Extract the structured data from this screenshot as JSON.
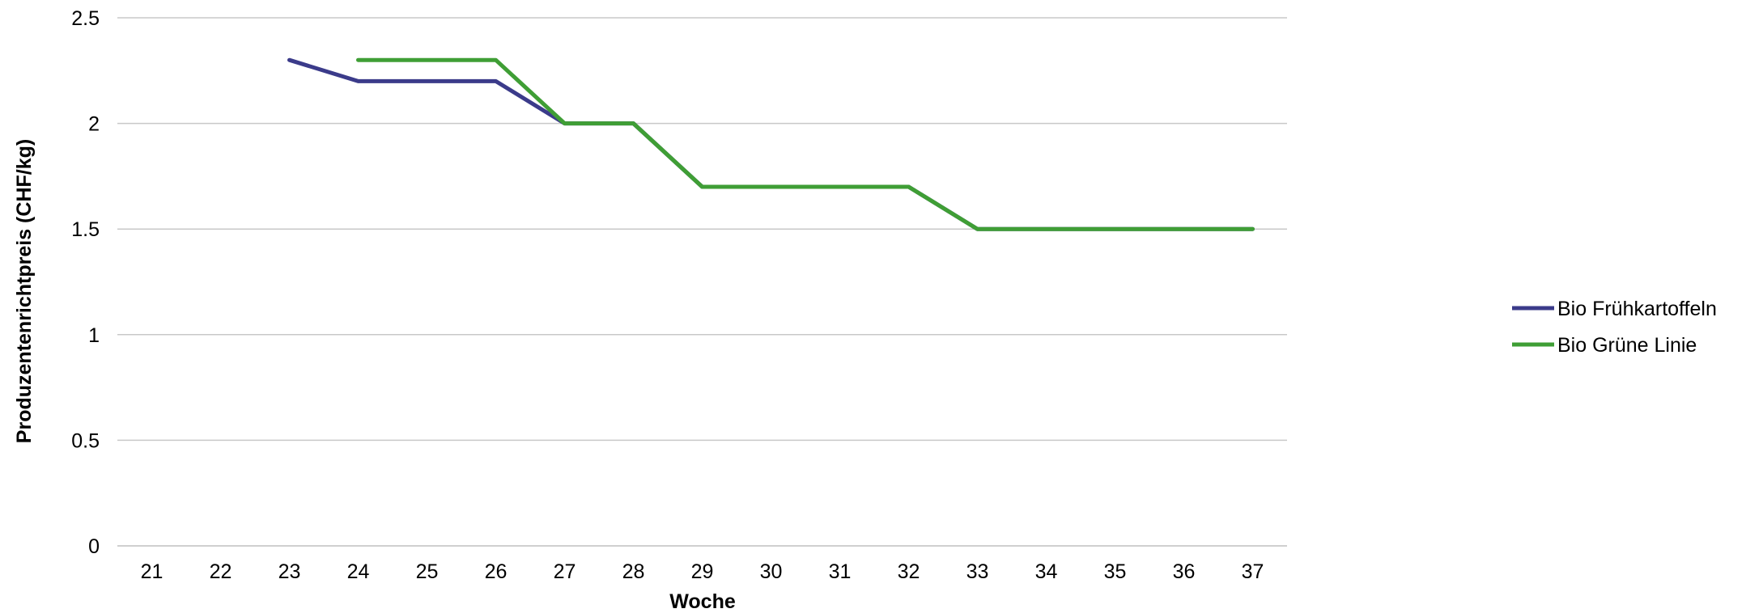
{
  "chart_data": {
    "type": "line",
    "title": "",
    "xlabel": "Woche",
    "ylabel": "Produzentenrichtpreis (CHF/kg)",
    "x": [
      "21",
      "22",
      "23",
      "24",
      "25",
      "26",
      "27",
      "28",
      "29",
      "30",
      "31",
      "32",
      "33",
      "34",
      "35",
      "36",
      "37"
    ],
    "ylim": [
      0,
      2.5
    ],
    "yticks": [
      "0",
      "0.5",
      "1",
      "1.5",
      "2",
      "2.5"
    ],
    "ytick_values": [
      0,
      0.5,
      1,
      1.5,
      2,
      2.5
    ],
    "grid": true,
    "legend_position": "right",
    "series": [
      {
        "name": "Bio Frühkartoffeln",
        "color": "#3b3b8a",
        "values": [
          null,
          null,
          2.3,
          2.2,
          2.2,
          2.2,
          2.0,
          2.0,
          1.7,
          1.7,
          1.7,
          1.7,
          1.5,
          1.5,
          1.5,
          1.5,
          1.5
        ]
      },
      {
        "name": "Bio Grüne Linie",
        "color": "#3f9e35",
        "values": [
          null,
          null,
          null,
          2.3,
          2.3,
          2.3,
          2.0,
          2.0,
          1.7,
          1.7,
          1.7,
          1.7,
          1.5,
          1.5,
          1.5,
          1.5,
          1.5
        ]
      }
    ]
  }
}
